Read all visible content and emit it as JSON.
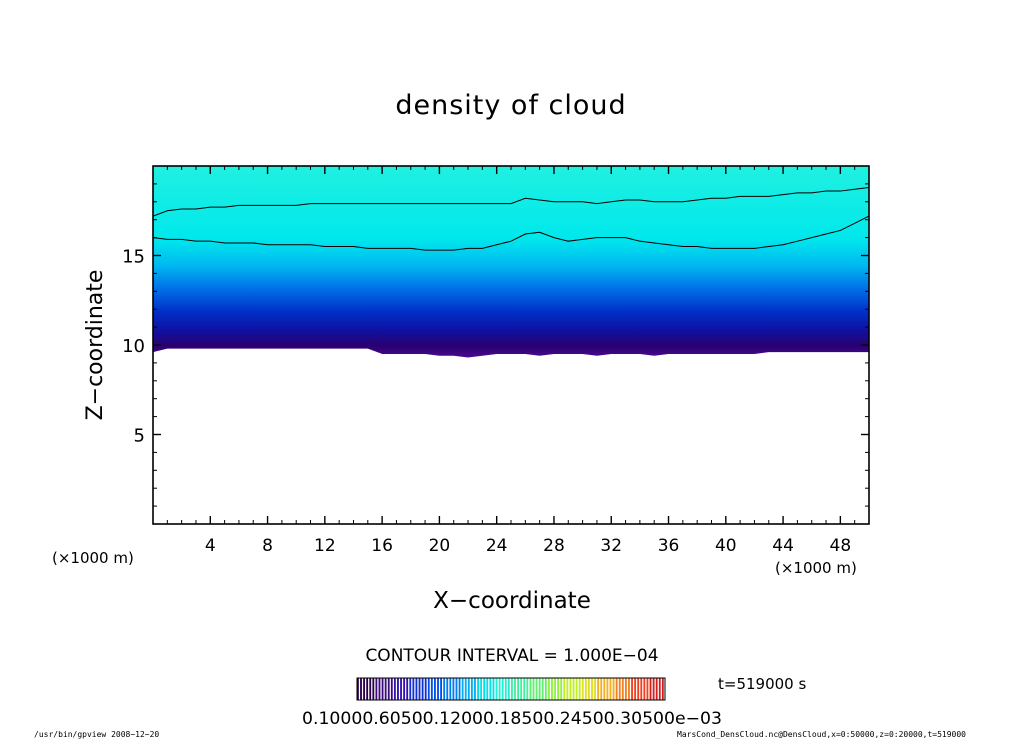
{
  "chart_data": {
    "type": "heatmap",
    "title": "density of cloud",
    "xlabel": "X−coordinate",
    "ylabel": "Z−coordinate",
    "x_unit": "(×1000 m)",
    "z_unit": "(×1000 m)",
    "xlim": [
      0,
      50
    ],
    "ylim": [
      0,
      20
    ],
    "x_ticks": [
      4,
      8,
      12,
      16,
      20,
      24,
      28,
      32,
      36,
      40,
      44,
      48
    ],
    "y_ticks": [
      5,
      10,
      15
    ],
    "contour_interval": "CONTOUR INTERVAL = 1.000E−04",
    "time_label": "t=519000 s",
    "colorbar": {
      "min": 0.0001,
      "max": 0.00035,
      "tick_text": "0.10000.60500.12000.18500.24500.30500e−03",
      "colors": [
        "#2a004a",
        "#3a0a7a",
        "#3010b0",
        "#1030d0",
        "#0050e8",
        "#0080f0",
        "#00b0f0",
        "#00e0e8",
        "#20f0d0",
        "#40f0a0",
        "#60f070",
        "#90f040",
        "#c0f020",
        "#e0e020",
        "#f0b020",
        "#f08020",
        "#f04020",
        "#d02020"
      ]
    },
    "cloud_base_z": [
      9.6,
      9.8,
      9.8,
      9.8,
      9.8,
      9.8,
      9.8,
      9.8,
      9.8,
      9.8,
      9.8,
      9.8,
      9.8,
      9.8,
      9.8,
      9.8,
      9.5,
      9.5,
      9.5,
      9.5,
      9.4,
      9.4,
      9.3,
      9.4,
      9.5,
      9.5,
      9.5,
      9.4,
      9.5,
      9.5,
      9.5,
      9.4,
      9.5,
      9.5,
      9.5,
      9.4,
      9.5,
      9.5,
      9.5,
      9.5,
      9.5,
      9.5,
      9.5,
      9.6,
      9.6,
      9.6,
      9.6,
      9.6,
      9.6,
      9.6,
      9.6
    ],
    "contour_upper_z": [
      17.2,
      17.5,
      17.6,
      17.6,
      17.7,
      17.7,
      17.8,
      17.8,
      17.8,
      17.8,
      17.8,
      17.9,
      17.9,
      17.9,
      17.9,
      17.9,
      17.9,
      17.9,
      17.9,
      17.9,
      17.9,
      17.9,
      17.9,
      17.9,
      17.9,
      17.9,
      18.2,
      18.1,
      18.0,
      18.0,
      18.0,
      17.9,
      18.0,
      18.1,
      18.1,
      18.0,
      18.0,
      18.0,
      18.1,
      18.2,
      18.2,
      18.3,
      18.3,
      18.3,
      18.4,
      18.5,
      18.5,
      18.6,
      18.6,
      18.7,
      18.8
    ],
    "contour_lower_z": [
      16.0,
      15.9,
      15.9,
      15.8,
      15.8,
      15.7,
      15.7,
      15.7,
      15.6,
      15.6,
      15.6,
      15.6,
      15.5,
      15.5,
      15.5,
      15.4,
      15.4,
      15.4,
      15.4,
      15.3,
      15.3,
      15.3,
      15.4,
      15.4,
      15.6,
      15.8,
      16.2,
      16.3,
      16.0,
      15.8,
      15.9,
      16.0,
      16.0,
      16.0,
      15.8,
      15.7,
      15.6,
      15.5,
      15.5,
      15.4,
      15.4,
      15.4,
      15.4,
      15.5,
      15.6,
      15.8,
      16.0,
      16.2,
      16.4,
      16.8,
      17.2
    ]
  },
  "footer": {
    "left": "/usr/bin/gpview 2008−12−20",
    "right": "MarsCond_DensCloud.nc@DensCloud,x=0:50000,z=0:20000,t=519000"
  }
}
